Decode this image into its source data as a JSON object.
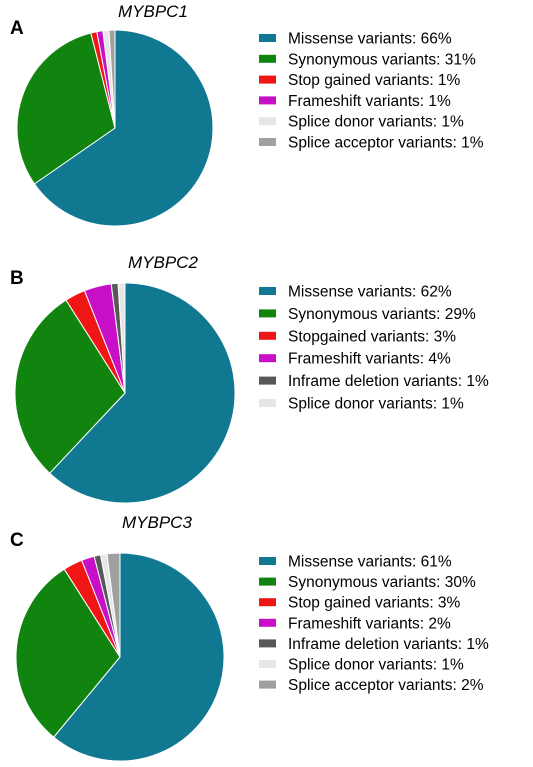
{
  "chart_data": [
    {
      "type": "pie",
      "panel_label": "A",
      "title": "MYBPC1",
      "legend_placement": "right",
      "slices": [
        {
          "label": "Missense variants: 66%",
          "value": 66,
          "color": "#117891"
        },
        {
          "label": "Synonymous variants: 31%",
          "value": 31,
          "color": "#11840f"
        },
        {
          "label": "Stop gained variants: 1%",
          "value": 1,
          "color": "#f01616"
        },
        {
          "label": "Frameshift variants: 1%",
          "value": 1,
          "color": "#c60fc6"
        },
        {
          "label": "Splice donor variants: 1%",
          "value": 1,
          "color": "#e6e6e6"
        },
        {
          "label": "Splice acceptor variants: 1%",
          "value": 1,
          "color": "#a0a0a0"
        }
      ]
    },
    {
      "type": "pie",
      "panel_label": "B",
      "title": "MYBPC2",
      "legend_placement": "right",
      "slices": [
        {
          "label": "Missense variants: 62%",
          "value": 62,
          "color": "#117891"
        },
        {
          "label": "Synonymous variants: 29%",
          "value": 29,
          "color": "#11840f"
        },
        {
          "label": "Stopgained variants: 3%",
          "value": 3,
          "color": "#f01616"
        },
        {
          "label": "Frameshift variants: 4%",
          "value": 4,
          "color": "#c60fc6"
        },
        {
          "label": "Inframe deletion variants: 1%",
          "value": 1,
          "color": "#585858"
        },
        {
          "label": "Splice donor variants: 1%",
          "value": 1,
          "color": "#e6e6e6"
        }
      ]
    },
    {
      "type": "pie",
      "panel_label": "C",
      "title": "MYBPC3",
      "legend_placement": "right",
      "slices": [
        {
          "label": "Missense variants: 61%",
          "value": 61,
          "color": "#117891"
        },
        {
          "label": "Synonymous variants: 30%",
          "value": 30,
          "color": "#11840f"
        },
        {
          "label": "Stop gained variants: 3%",
          "value": 3,
          "color": "#f01616"
        },
        {
          "label": "Frameshift variants: 2%",
          "value": 2,
          "color": "#c60fc6"
        },
        {
          "label": "Inframe deletion variants: 1%",
          "value": 1,
          "color": "#585858"
        },
        {
          "label": "Splice donor variants: 1%",
          "value": 1,
          "color": "#e6e6e6"
        },
        {
          "label": "Splice acceptor variants: 2%",
          "value": 2,
          "color": "#a0a0a0"
        }
      ]
    }
  ]
}
